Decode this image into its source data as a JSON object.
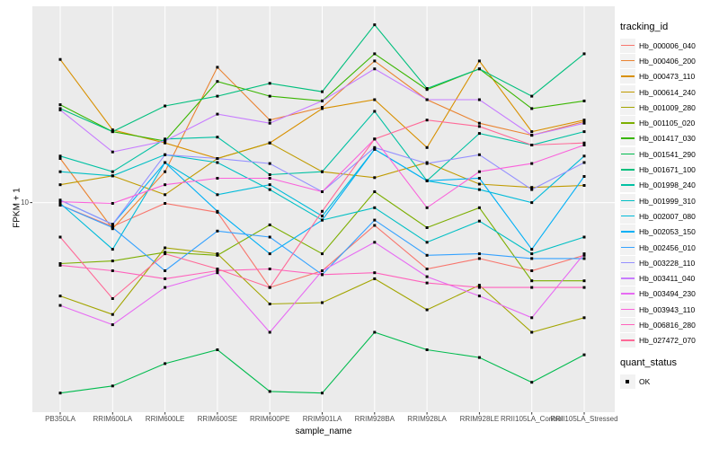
{
  "colors": {
    "panel_bg": "#EBEBEB",
    "grid": "#FFFFFF",
    "point": "#000000",
    "tick_text": "#4D4D4D",
    "axis_text": "#000000",
    "legend_key_bg": "#F2F2F2"
  },
  "y_axis": {
    "title": "FPKM + 1",
    "ticks": [
      "10"
    ]
  },
  "x_axis": {
    "title": "sample_name"
  },
  "legend": {
    "tracking": {
      "title": "tracking_id"
    },
    "quant": {
      "title": "quant_status",
      "items": [
        {
          "label": "OK",
          "symbol": "filled-black-square"
        }
      ]
    }
  },
  "chart_data": {
    "type": "line",
    "title": "",
    "xlabel": "sample_name",
    "ylabel": "FPKM + 1",
    "y_scale": "log10",
    "y_tick_values": [
      10
    ],
    "ylim": [
      0.9,
      110
    ],
    "grid": "major-only-white-on-gray",
    "legend_position": "right",
    "point_shape": "filled-square",
    "quant_status": "OK",
    "categories": [
      "PB350LA",
      "RRIM600LA",
      "RRIM600LE",
      "RRIM600SE",
      "RRIM600PE",
      "RRIM901LA",
      "RRIM928BA",
      "RRIM928LA",
      "RRIM928LE",
      "RRII105LA_Control",
      "RRII105LA_Stressed"
    ],
    "series": [
      {
        "name": "Hb_000006_040",
        "color": "#F8766D",
        "values": [
          9.7,
          7.5,
          9.9,
          8.9,
          3.6,
          4.4,
          7.6,
          4.5,
          5.1,
          4.4,
          5.3
        ]
      },
      {
        "name": "Hb_000406_200",
        "color": "#EA8331",
        "values": [
          17,
          7.3,
          14.5,
          51,
          27,
          31.5,
          55,
          34.5,
          26,
          22.5,
          26.5
        ]
      },
      {
        "name": "Hb_000473_110",
        "color": "#D89000",
        "values": [
          56,
          24,
          20.5,
          17,
          20.5,
          31,
          34.5,
          19.4,
          55,
          23.5,
          27
        ]
      },
      {
        "name": "Hb_000614_240",
        "color": "#C09B00",
        "values": [
          12.4,
          13.8,
          11,
          17,
          20.5,
          14.5,
          13.5,
          16.2,
          12.5,
          12,
          12.3
        ]
      },
      {
        "name": "Hb_001009_280",
        "color": "#A3A500",
        "values": [
          3.25,
          2.6,
          5.8,
          5.4,
          2.95,
          3.0,
          4.0,
          2.75,
          3.7,
          2.1,
          2.5
        ]
      },
      {
        "name": "Hb_001105_020",
        "color": "#7CAE00",
        "values": [
          4.8,
          4.95,
          5.5,
          5.3,
          7.65,
          5.4,
          11.4,
          7.4,
          9.4,
          3.9,
          3.9
        ]
      },
      {
        "name": "Hb_001417_030",
        "color": "#39B600",
        "values": [
          32.5,
          23.5,
          21,
          43,
          36,
          34,
          60,
          39,
          50,
          31,
          34
        ]
      },
      {
        "name": "Hb_001541_290",
        "color": "#00BB4E",
        "values": [
          1.01,
          1.1,
          1.44,
          1.7,
          1.03,
          1.01,
          2.1,
          1.7,
          1.55,
          1.15,
          1.6
        ]
      },
      {
        "name": "Hb_001671_100",
        "color": "#00BF7D",
        "values": [
          31,
          23.5,
          32,
          36,
          42,
          38,
          85,
          39.5,
          50,
          36,
          60
        ]
      },
      {
        "name": "Hb_001998_240",
        "color": "#00C1A3",
        "values": [
          17.5,
          14.5,
          21.5,
          22,
          14,
          14.5,
          30,
          13,
          23,
          20,
          23.5
        ]
      },
      {
        "name": "Hb_001999_310",
        "color": "#00BFC4",
        "values": [
          14.5,
          13.8,
          17.8,
          16.2,
          11.7,
          8.1,
          9.4,
          6.2,
          8.0,
          5.4,
          6.6
        ]
      },
      {
        "name": "Hb_002007_080",
        "color": "#00BBDA",
        "values": [
          9.9,
          5.7,
          16.2,
          11.0,
          12.4,
          8.5,
          19.0,
          13.0,
          11.7,
          10.0,
          17.5
        ]
      },
      {
        "name": "Hb_002053_150",
        "color": "#00B0F6",
        "values": [
          10.3,
          7.7,
          16.2,
          9.0,
          5.4,
          8.1,
          19.0,
          13.0,
          13.4,
          5.7,
          13.7
        ]
      },
      {
        "name": "Hb_002456_010",
        "color": "#35A2FF",
        "values": [
          9.7,
          7.4,
          4.4,
          7.1,
          6.6,
          4.2,
          8.1,
          5.3,
          5.4,
          5.1,
          5.1
        ]
      },
      {
        "name": "Hb_003228_110",
        "color": "#9590FF",
        "values": [
          10.3,
          7.7,
          17.8,
          17,
          16,
          11.4,
          19.4,
          16,
          17.8,
          11.7,
          16.2
        ]
      },
      {
        "name": "Hb_003411_040",
        "color": "#C77CFF",
        "values": [
          30.5,
          18.4,
          21,
          29,
          26,
          34,
          50,
          34.5,
          34.5,
          22.5,
          26
        ]
      },
      {
        "name": "Hb_003494_230",
        "color": "#E76BF3",
        "values": [
          2.9,
          2.3,
          3.6,
          4.3,
          2.1,
          4.4,
          6.2,
          4.1,
          3.25,
          2.5,
          5.4
        ]
      },
      {
        "name": "Hb_003943_110",
        "color": "#FA62DB",
        "values": [
          10.1,
          9.9,
          12.4,
          13.4,
          13.4,
          11.4,
          21.5,
          9.4,
          14.5,
          16.0,
          20.0
        ]
      },
      {
        "name": "Hb_006816_280",
        "color": "#FF62BC",
        "values": [
          4.7,
          4.4,
          4.0,
          4.4,
          4.5,
          4.2,
          4.3,
          3.8,
          3.6,
          3.6,
          3.6
        ]
      },
      {
        "name": "Hb_027472_070",
        "color": "#FF6A98",
        "values": [
          6.6,
          3.15,
          5.4,
          4.5,
          3.6,
          9.0,
          21.5,
          27,
          25,
          20,
          20.5
        ]
      }
    ]
  }
}
